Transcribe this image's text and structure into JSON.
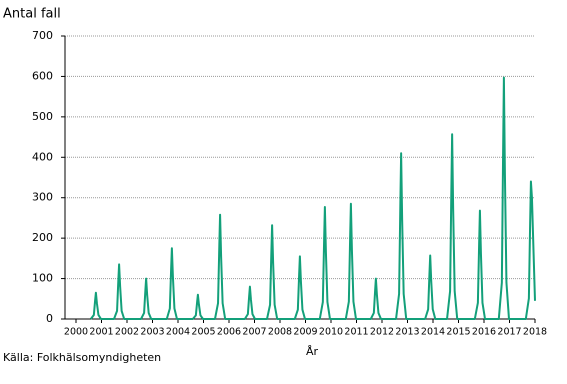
{
  "chart_data": {
    "type": "line",
    "title": "Antal fall",
    "x_label": "År",
    "source": "Källa: Folkhälsomyndigheten",
    "x": [
      2000.58,
      2000.7,
      2000.75,
      2000.78,
      2000.82,
      2000.88,
      2000.98,
      2001.49,
      2001.61,
      2001.66,
      2001.69,
      2001.73,
      2001.79,
      2001.89,
      2002.55,
      2002.67,
      2002.72,
      2002.75,
      2002.79,
      2002.85,
      2002.95,
      2003.56,
      2003.68,
      2003.73,
      2003.76,
      2003.8,
      2003.86,
      2003.96,
      2004.58,
      2004.7,
      2004.75,
      2004.78,
      2004.82,
      2004.88,
      2004.98,
      2005.45,
      2005.57,
      2005.62,
      2005.65,
      2005.69,
      2005.75,
      2005.85,
      2006.62,
      2006.74,
      2006.79,
      2006.82,
      2006.86,
      2006.92,
      2007.02,
      2007.49,
      2007.61,
      2007.66,
      2007.69,
      2007.73,
      2007.79,
      2007.89,
      2008.58,
      2008.7,
      2008.75,
      2008.78,
      2008.82,
      2008.88,
      2008.98,
      2009.56,
      2009.68,
      2009.73,
      2009.76,
      2009.8,
      2009.86,
      2009.96,
      2010.58,
      2010.7,
      2010.75,
      2010.78,
      2010.82,
      2010.88,
      2010.98,
      2011.56,
      2011.68,
      2011.73,
      2011.76,
      2011.8,
      2011.86,
      2011.96,
      2012.55,
      2012.67,
      2012.72,
      2012.75,
      2012.79,
      2012.85,
      2012.95,
      2013.69,
      2013.81,
      2013.86,
      2013.89,
      2013.93,
      2013.99,
      2014.09,
      2014.55,
      2014.67,
      2014.72,
      2014.75,
      2014.79,
      2014.85,
      2014.95,
      2015.64,
      2015.76,
      2015.81,
      2015.84,
      2015.88,
      2015.94,
      2016.04,
      2016.58,
      2016.7,
      2016.75,
      2016.78,
      2016.82,
      2016.88,
      2016.98,
      2017.64,
      2017.76,
      2017.81,
      2017.84,
      2017.88,
      2017.95,
      2018.0
    ],
    "values": [
      0,
      10,
      46,
      65,
      39,
      10,
      0,
      0,
      20,
      95,
      135,
      81,
      20,
      0,
      0,
      15,
      70,
      100,
      60,
      15,
      0,
      0,
      26,
      123,
      175,
      105,
      26,
      0,
      0,
      9,
      42,
      60,
      36,
      9,
      0,
      0,
      39,
      181,
      258,
      155,
      39,
      0,
      0,
      12,
      56,
      80,
      48,
      12,
      0,
      0,
      35,
      162,
      232,
      139,
      35,
      0,
      0,
      23,
      109,
      155,
      93,
      23,
      0,
      0,
      42,
      194,
      277,
      166,
      42,
      0,
      0,
      43,
      200,
      285,
      171,
      43,
      0,
      0,
      15,
      70,
      100,
      60,
      15,
      0,
      0,
      62,
      287,
      410,
      246,
      62,
      0,
      0,
      24,
      110,
      157,
      94,
      24,
      0,
      0,
      69,
      320,
      457,
      274,
      69,
      0,
      0,
      40,
      188,
      268,
      161,
      40,
      0,
      0,
      90,
      418,
      597,
      358,
      90,
      0,
      0,
      51,
      238,
      340,
      300,
      150,
      45
    ],
    "color": "#13a07a",
    "xlim": [
      2000,
      2018
    ],
    "xticks": [
      2000,
      2001,
      2002,
      2003,
      2004,
      2005,
      2006,
      2007,
      2008,
      2009,
      2010,
      2011,
      2012,
      2013,
      2014,
      2015,
      2016,
      2017,
      2018
    ],
    "ylim": [
      0,
      700
    ],
    "yticks": [
      0,
      100,
      200,
      300,
      400,
      500,
      600,
      700
    ],
    "grid": true
  }
}
